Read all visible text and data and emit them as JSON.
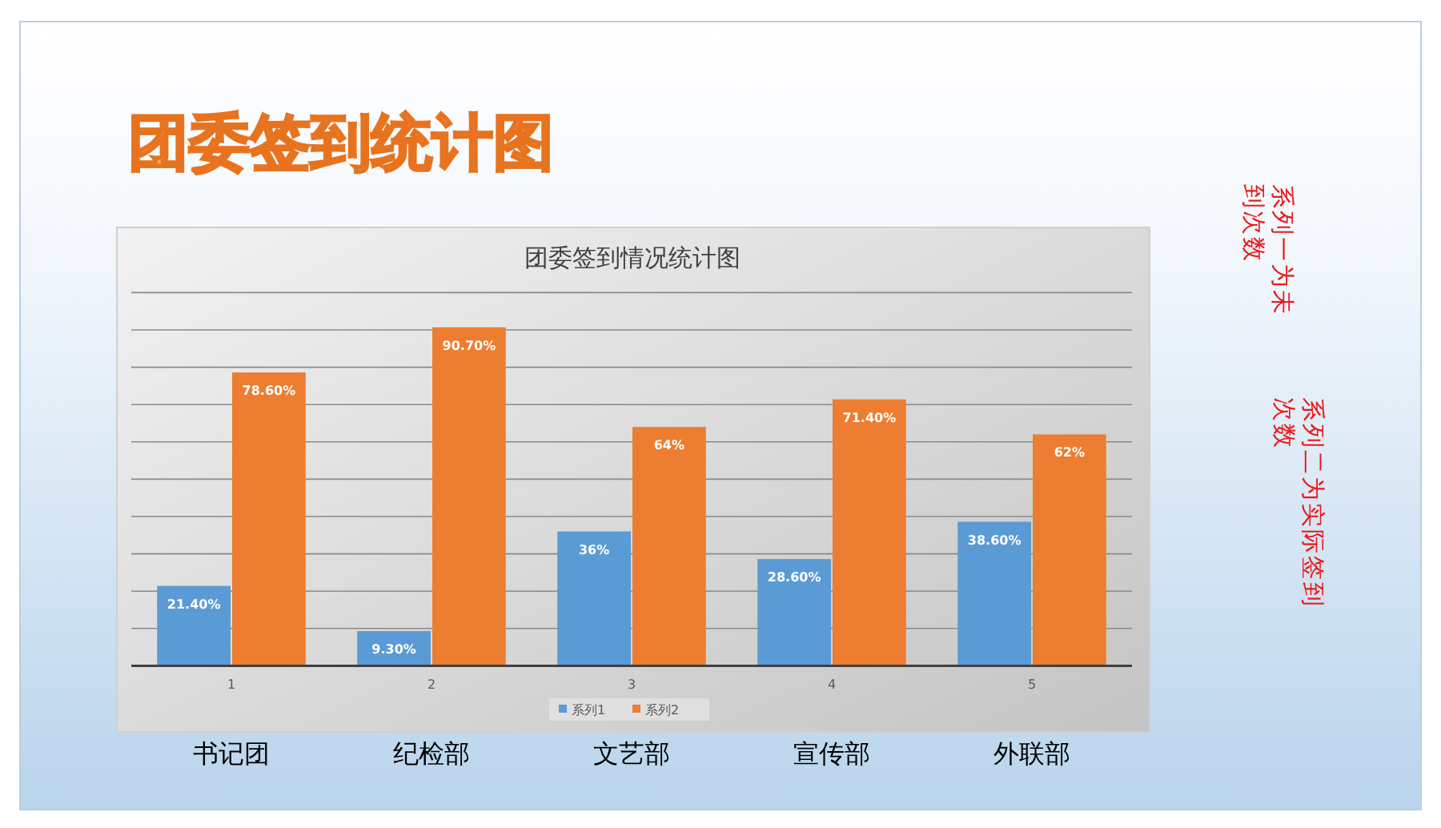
{
  "chart_data": {
    "type": "bar",
    "title": "团委签到统计图",
    "subtitle": "团委签到情况统计图",
    "categories": [
      "1",
      "2",
      "3",
      "4",
      "5"
    ],
    "series": [
      {
        "name": "系列1",
        "color": "#5b9bd5",
        "values": [
          21.4,
          9.3,
          36,
          28.6,
          38.6
        ],
        "value_labels": [
          "21.40%",
          "9.30%",
          "36%",
          "28.60%",
          "38.60%"
        ]
      },
      {
        "name": "系列2",
        "color": "#ed7d31",
        "values": [
          78.6,
          90.7,
          64,
          71.4,
          62
        ],
        "value_labels": [
          "78.60%",
          "90.70%",
          "64%",
          "71.40%",
          "62%"
        ]
      }
    ],
    "ylim": [
      0,
      100
    ],
    "yticks": [
      {
        "value": 0,
        "label": null
      },
      {
        "value": 10,
        "label": null
      },
      {
        "value": 20,
        "label": null
      },
      {
        "value": 30,
        "label": null
      },
      {
        "value": 40,
        "label": null
      },
      {
        "value": 50,
        "label": null
      },
      {
        "value": 60,
        "label": null
      },
      {
        "value": 70,
        "label": null
      },
      {
        "value": 80,
        "label": null
      },
      {
        "value": 90,
        "label": null
      },
      {
        "value": 100,
        "label": null
      }
    ],
    "tick_labels": "x",
    "grid": "y",
    "legend": "bottom",
    "annotations": [
      "书记团",
      "纪检部",
      "文艺部",
      "宣传部",
      "外联部",
      "系列一为未",
      "到次数",
      "系列二为实际签到",
      "次数"
    ]
  }
}
